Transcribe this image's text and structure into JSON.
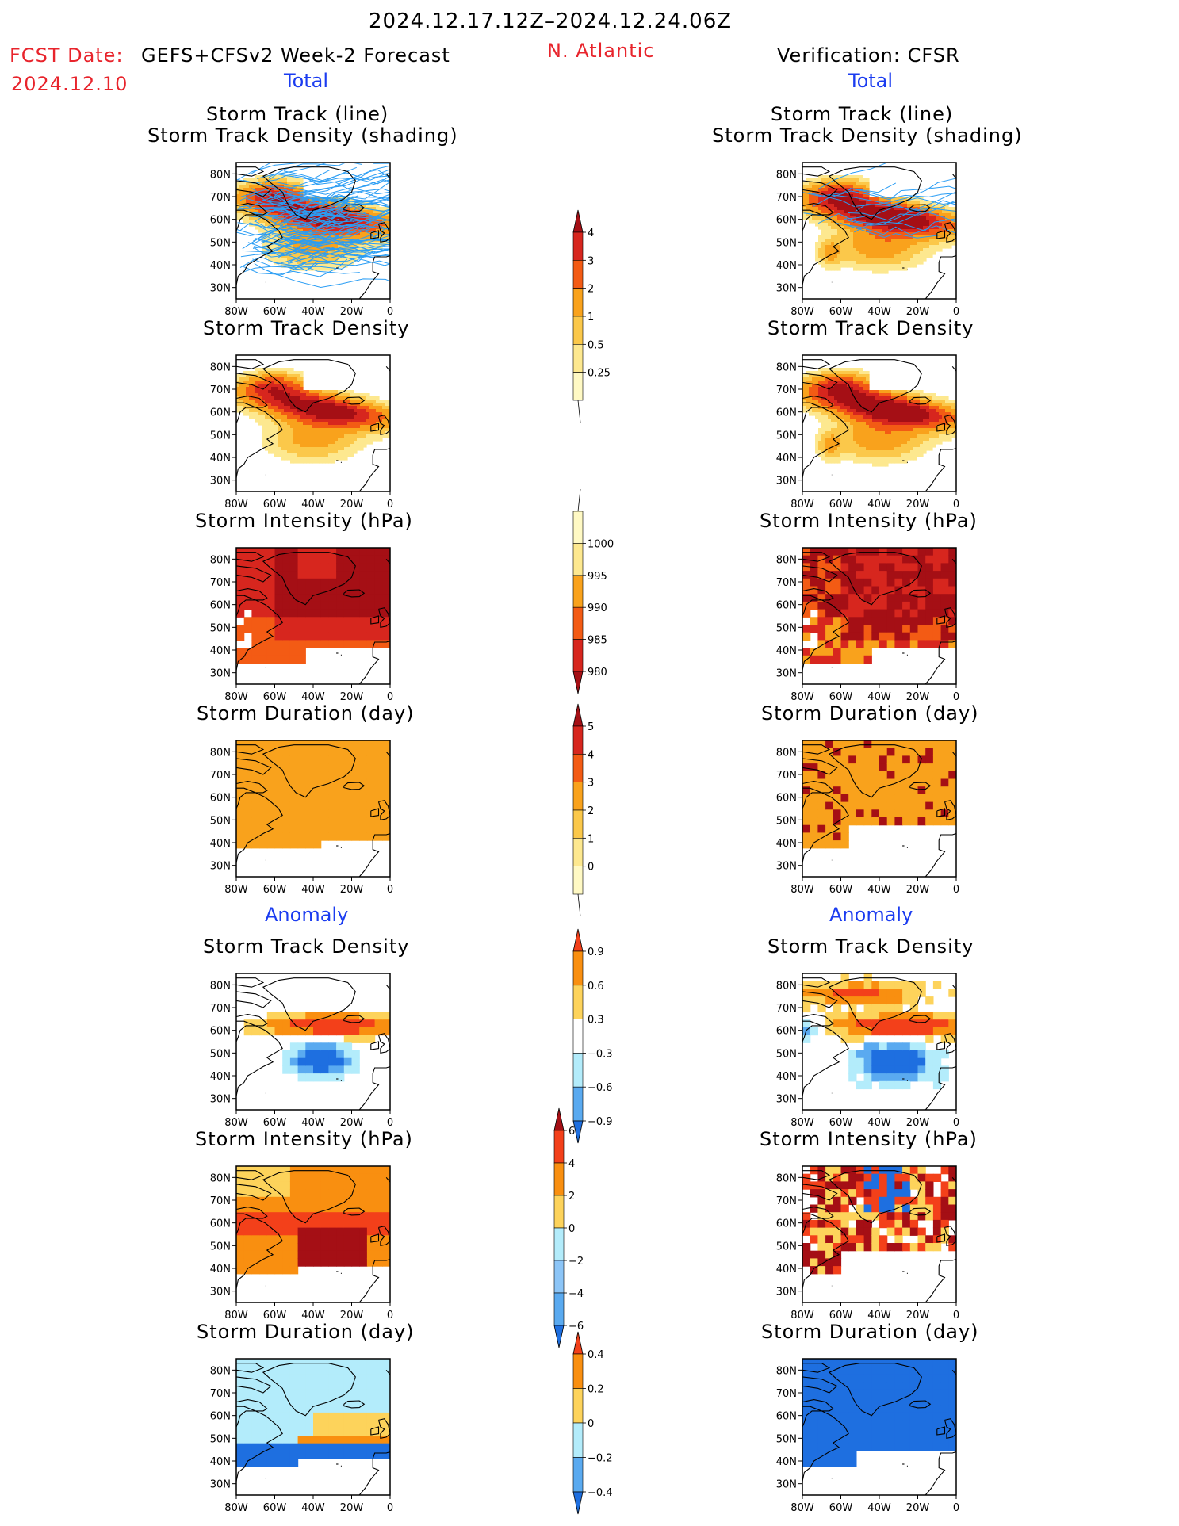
{
  "header": {
    "period": "2024.12.17.12Z–2024.12.24.06Z",
    "fcst_label": "FCST Date:",
    "fcst_date": "2024.12.10",
    "model": "GEFS+CFSv2 Week-2 Forecast",
    "region": "N. Atlantic",
    "verification": "Verification: CFSR"
  },
  "sections": {
    "total": "Total",
    "anomaly": "Anomaly"
  },
  "panel_titles": {
    "track_line": "Storm Track (line)",
    "track_shading": "Storm Track Density (shading)",
    "density": "Storm Track Density",
    "intensity": "Storm Intensity (hPa)",
    "duration": "Storm Duration (day)"
  },
  "axes": {
    "lon_ticks": [
      "80W",
      "60W",
      "40W",
      "20W",
      "0"
    ],
    "lat_ticks": [
      "80N",
      "70N",
      "60N",
      "50N",
      "40N",
      "30N"
    ]
  },
  "colorbars": {
    "total_density": {
      "labels": [
        "4",
        "3",
        "2",
        "1",
        "0.5",
        "0.25"
      ],
      "colors": [
        "#a50f15",
        "#d7261e",
        "#f35b14",
        "#f9a21c",
        "#fbc84a",
        "#fde88f",
        "#fff9c4"
      ]
    },
    "total_intensity": {
      "labels": [
        "1000",
        "995",
        "990",
        "985",
        "980"
      ],
      "colors": [
        "#fff9c4",
        "#fde88f",
        "#f9a21c",
        "#f35b14",
        "#d7261e",
        "#a50f15"
      ]
    },
    "total_duration": {
      "labels": [
        "5",
        "4",
        "3",
        "2",
        "1",
        "0"
      ],
      "colors": [
        "#a50f15",
        "#d7261e",
        "#f35b14",
        "#f9a21c",
        "#fbc84a",
        "#fde88f",
        "#fff9c4"
      ]
    },
    "anom_density": {
      "labels": [
        "0.9",
        "0.6",
        "0.3",
        "−0.3",
        "−0.6",
        "−0.9"
      ],
      "colors": [
        "#f3401a",
        "#f98f10",
        "#fdd35b",
        "#ffffff",
        "#b3ecfb",
        "#5aaaf0",
        "#1e6fe0"
      ]
    },
    "anom_intensity": {
      "labels": [
        "6",
        "4",
        "2",
        "0",
        "−2",
        "−4",
        "−6"
      ],
      "colors": [
        "#a50f15",
        "#f3401a",
        "#f98f10",
        "#fdd35b",
        "#b3ecfb",
        "#8cc5f7",
        "#5aaaf0",
        "#1e6fe0"
      ]
    },
    "anom_duration": {
      "labels": [
        "0.4",
        "0.2",
        "0",
        "−0.2",
        "−0.4"
      ],
      "colors": [
        "#f3401a",
        "#f98f10",
        "#fdd35b",
        "#b3ecfb",
        "#5aaaf0",
        "#1e6fe0"
      ]
    }
  },
  "colors": {
    "title_red": "#e8242c",
    "section_blue": "#1b3cf0",
    "track_line": "#2a9df4"
  }
}
